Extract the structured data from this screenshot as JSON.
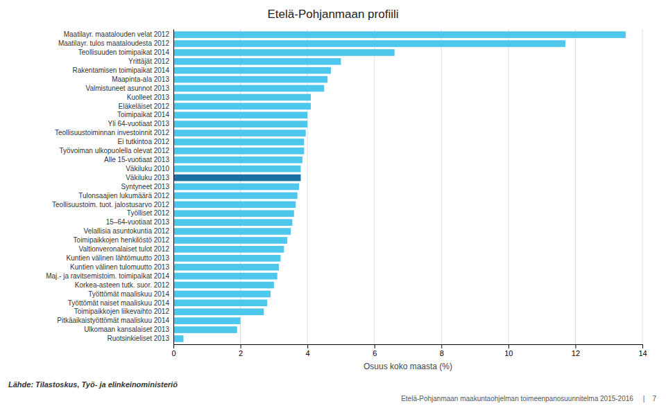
{
  "chart_data": {
    "type": "bar",
    "orientation": "horizontal",
    "title": "Etelä-Pohjanmaan profiili",
    "xlabel": "Osuus koko maasta (%)",
    "annotations": [
      "Lähde: Tilastoskus, Työ- ja elinkeinoministeriö",
      "Etelä-Pohjanmaan maakuntaohjelman toimeenpanosuunnitelma 2015-2016     |    7"
    ],
    "categories": [
      "Maatilayr. maatalouden velat 2012",
      "Maatilayr. tulos maataloudesta 2012",
      "Teollisuuden toimipaikat 2014",
      "Yrittäjät 2012",
      "Rakentamisen toimipaikat 2014",
      "Maapinta-ala 2013",
      "Valmistuneet asunnot 2013",
      "Kuolleet 2013",
      "Eläkeläiset 2012",
      "Toimipaikat 2014",
      "Yli 64-vuotiaat 2013",
      "Teollisuustoiminnan investoinnit 2012",
      "Ei tutkintoa 2012",
      "Työvoiman ulkopuolella olevat 2012",
      "Alle 15-vuotiaat 2013",
      "Väkiluku 2010",
      "Väkiluku 2013",
      "Syntyneet 2013",
      "Tulonsaajien lukumäärä 2012",
      "Teollisuustoim. tuot. jalostusarvo 2012",
      "Työlliset 2012",
      "15–64-vuotiaat 2013",
      "Velallisia asuntokuntia 2012",
      "Toimipaikkojen henkilöstö 2012",
      "Valtionveronalaiset tulot 2012",
      "Kuntien välinen lähtömuutto 2013",
      "Kuntien välinen tulomuutto 2013",
      "Maj.- ja ravitsemistoim. toimipaikat 2014",
      "Korkea-asteen tutk. suor. 2012",
      "Työttömät maaliskuu 2014",
      "Työttömät naiset maaliskuu 2014",
      "Toimipaikkojen liikevaihto 2012",
      "Pitkäaikaistyöttömät maaliskuu 2014",
      "Ulkomaan kansalaiset 2013",
      "Ruotsinkieliset 2013"
    ],
    "values": [
      13.5,
      11.7,
      6.6,
      5.0,
      4.7,
      4.6,
      4.5,
      4.1,
      4.1,
      4.0,
      4.0,
      3.95,
      3.9,
      3.9,
      3.85,
      3.8,
      3.8,
      3.75,
      3.7,
      3.65,
      3.6,
      3.55,
      3.5,
      3.4,
      3.3,
      3.2,
      3.15,
      3.1,
      3.0,
      2.9,
      2.8,
      2.7,
      2.0,
      1.9,
      0.3
    ],
    "colors": [
      "#4DC8EC",
      "#4DC8EC",
      "#4DC8EC",
      "#4DC8EC",
      "#4DC8EC",
      "#4DC8EC",
      "#4DC8EC",
      "#4DC8EC",
      "#4DC8EC",
      "#4DC8EC",
      "#4DC8EC",
      "#4DC8EC",
      "#4DC8EC",
      "#4DC8EC",
      "#4DC8EC",
      "#4DC8EC",
      "#1A6FA3",
      "#4DC8EC",
      "#4DC8EC",
      "#4DC8EC",
      "#4DC8EC",
      "#4DC8EC",
      "#4DC8EC",
      "#4DC8EC",
      "#4DC8EC",
      "#4DC8EC",
      "#4DC8EC",
      "#4DC8EC",
      "#4DC8EC",
      "#4DC8EC",
      "#4DC8EC",
      "#4DC8EC",
      "#4DC8EC",
      "#4DC8EC",
      "#4DC8EC"
    ],
    "xlim": [
      0,
      14
    ],
    "xticks": [
      0,
      2,
      4,
      6,
      8,
      10,
      12,
      14
    ],
    "grid": true
  }
}
